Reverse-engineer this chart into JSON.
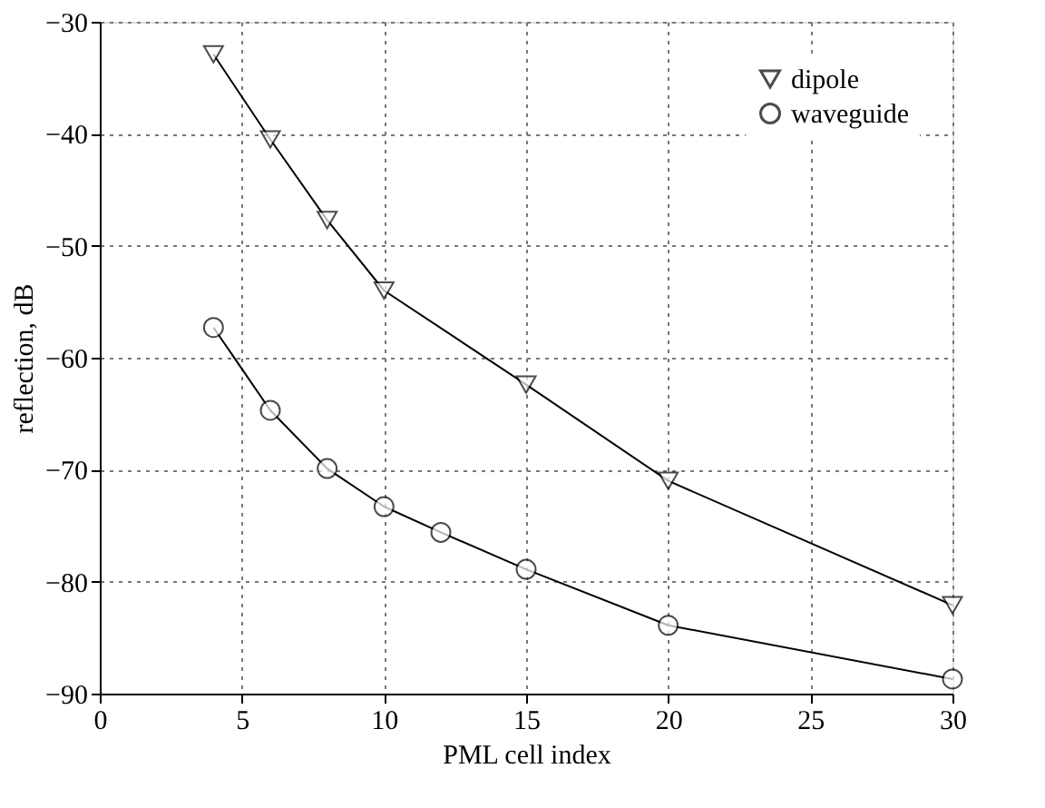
{
  "chart_data": {
    "type": "line",
    "xlabel": "PML cell index",
    "ylabel": "reflection, dB",
    "x": [
      4,
      6,
      8,
      10,
      15,
      20,
      30
    ],
    "series": [
      {
        "name": "dipole",
        "color": "#000000",
        "marker": "triangle",
        "values": [
          -32.9,
          -40.5,
          -47.7,
          -54.0,
          -62.4,
          -71.0,
          -82.1
        ]
      },
      {
        "name": "waveguide",
        "color": "#000000",
        "marker": "circle",
        "x": [
          4,
          6,
          8,
          10,
          12,
          15,
          20,
          30
        ],
        "values": [
          -57.3,
          -64.7,
          -69.9,
          -73.3,
          -75.6,
          -78.9,
          -83.9,
          -88.7
        ]
      }
    ],
    "xlim": [
      0,
      30
    ],
    "xticks": [
      0,
      5,
      10,
      15,
      20,
      25,
      30
    ],
    "ylim": [
      -90,
      -30
    ],
    "yticks": [
      -90,
      -80,
      -70,
      -60,
      -50,
      -40,
      -30
    ],
    "grid": true,
    "legend": "top right",
    "line_style": "solid"
  }
}
